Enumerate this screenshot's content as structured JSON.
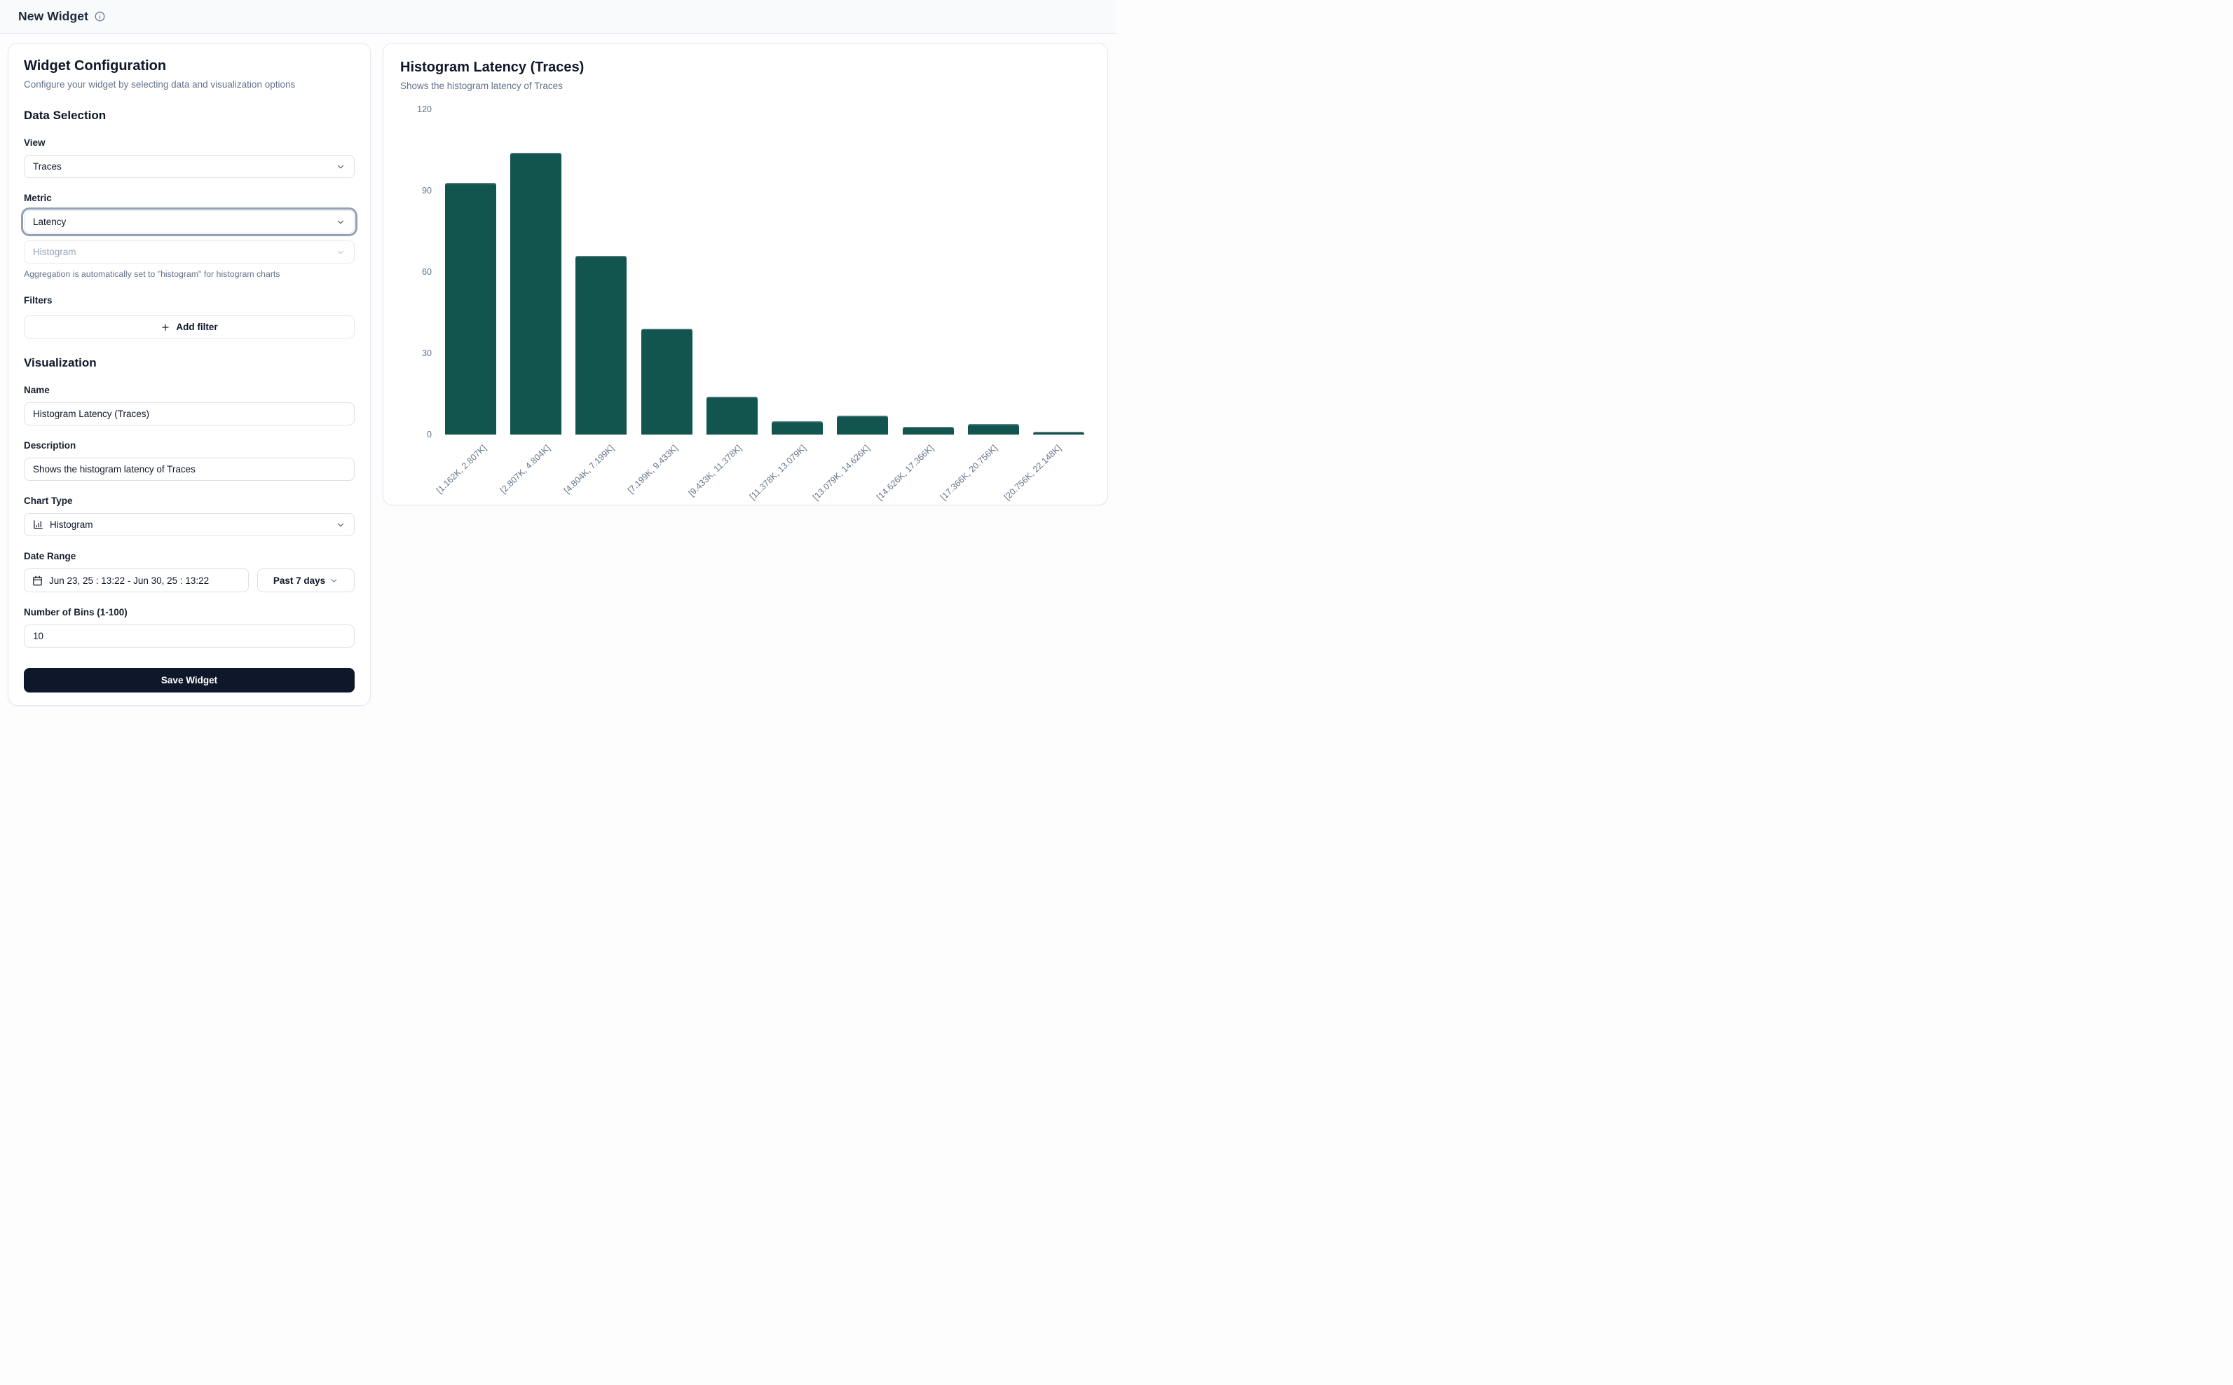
{
  "header": {
    "title": "New Widget"
  },
  "config_panel": {
    "title": "Widget Configuration",
    "subtitle": "Configure your widget by selecting data and visualization options",
    "data_selection_heading": "Data Selection",
    "view": {
      "label": "View",
      "value": "Traces"
    },
    "metric": {
      "label": "Metric",
      "value": "Latency"
    },
    "aggregation": {
      "value": "Histogram",
      "helper": "Aggregation is automatically set to \"histogram\" for histogram charts"
    },
    "filters": {
      "label": "Filters",
      "add_button": "Add filter"
    },
    "visualization_heading": "Visualization",
    "name": {
      "label": "Name",
      "value": "Histogram Latency (Traces)"
    },
    "description": {
      "label": "Description",
      "value": "Shows the histogram latency of Traces"
    },
    "chart_type": {
      "label": "Chart Type",
      "value": "Histogram"
    },
    "date_range": {
      "label": "Date Range",
      "value": "Jun 23, 25 : 13:22 - Jun 30, 25 : 13:22",
      "preset": "Past 7 days"
    },
    "bins": {
      "label": "Number of Bins (1-100)",
      "value": "10"
    },
    "save_button": "Save Widget"
  },
  "preview_panel": {
    "title": "Histogram Latency (Traces)",
    "subtitle": "Shows the histogram latency of Traces"
  },
  "chart_data": {
    "type": "bar",
    "title": "Histogram Latency (Traces)",
    "subtitle": "Shows the histogram latency of Traces",
    "categories": [
      "[1.162K, 2.807K]",
      "[2.807K, 4.804K]",
      "[4.804K, 7.199K]",
      "[7.199K, 9.433K]",
      "[9.433K, 11.378K]",
      "[11.378K, 13.079K]",
      "[13.079K, 14.626K]",
      "[14.626K, 17.366K]",
      "[17.366K, 20.756K]",
      "[20.756K, 22.148K]"
    ],
    "values": [
      93,
      104,
      66,
      39,
      14,
      5,
      7,
      3,
      4,
      1
    ],
    "ylim": [
      0,
      120
    ],
    "yticks": [
      0,
      30,
      60,
      90,
      120
    ],
    "bar_color": "#12544e",
    "axis_label_color": "#64748b",
    "grid": false,
    "legend": false,
    "x_tick_angle": -44
  }
}
